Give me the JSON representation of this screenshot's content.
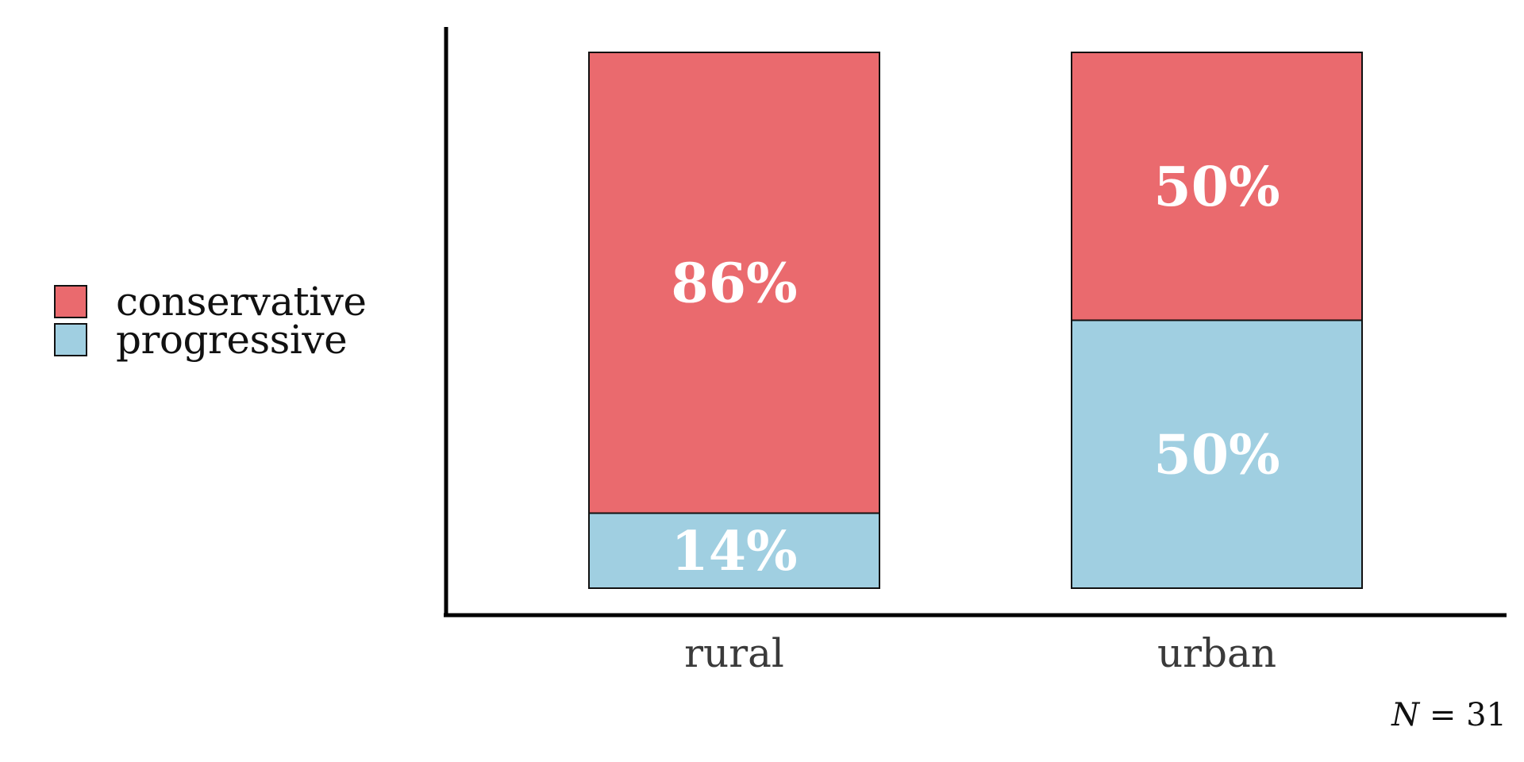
{
  "chart_data": {
    "type": "bar",
    "stacked": true,
    "normalized": true,
    "categories": [
      "rural",
      "urban"
    ],
    "series": [
      {
        "name": "progressive",
        "values": [
          14,
          50
        ],
        "color": "#a0cfe1"
      },
      {
        "name": "conservative",
        "values": [
          86,
          50
        ],
        "color": "#ea6a6e"
      }
    ],
    "value_labels": {
      "progressive": [
        "14%",
        "50%"
      ],
      "conservative": [
        "86%",
        "50%"
      ]
    },
    "ylim": [
      0,
      100
    ],
    "grid": false,
    "legend": {
      "position": "left",
      "items": [
        {
          "label": "conservative",
          "color": "#ea6a6e"
        },
        {
          "label": "progressive",
          "color": "#a0cfe1"
        }
      ]
    },
    "annotation": {
      "prefix": "N",
      "equals": " = ",
      "value": "31"
    }
  }
}
